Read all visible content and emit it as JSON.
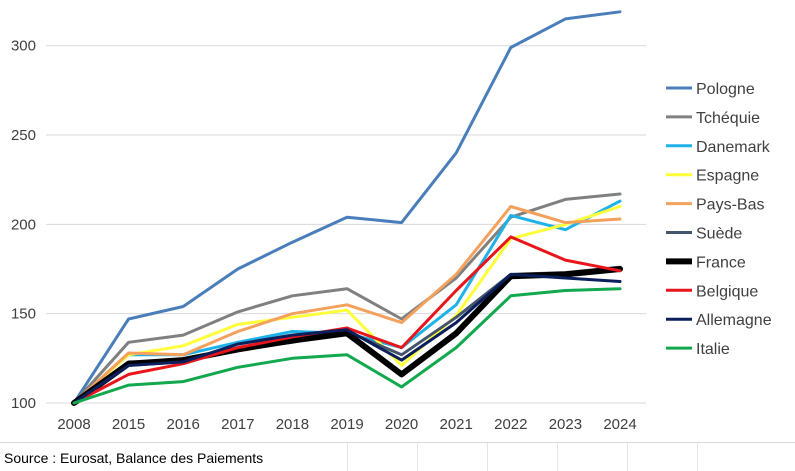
{
  "source_note": "Source : Eurosat, Balance des Paiements",
  "chart_data": {
    "type": "line",
    "title": "",
    "xlabel": "",
    "ylabel": "",
    "categories": [
      "2008",
      "2015",
      "2016",
      "2017",
      "2018",
      "2019",
      "2020",
      "2021",
      "2022",
      "2023",
      "2024"
    ],
    "ylim": [
      100,
      320
    ],
    "yticks": [
      100,
      150,
      200,
      250,
      300
    ],
    "grid": "horizontal",
    "legend_position": "right",
    "series": [
      {
        "name": "Pologne",
        "color": "#4a7ebb",
        "values": [
          100,
          147,
          154,
          175,
          190,
          204,
          201,
          240,
          299,
          315,
          319
        ]
      },
      {
        "name": "Tchéquie",
        "color": "#808080",
        "values": [
          100,
          134,
          138,
          151,
          160,
          164,
          147,
          170,
          204,
          214,
          217
        ]
      },
      {
        "name": "Danemark",
        "color": "#1fb2e8",
        "values": [
          100,
          127,
          127,
          134,
          140,
          139,
          131,
          155,
          205,
          197,
          213
        ]
      },
      {
        "name": "Espagne",
        "color": "#ffff3a",
        "values": [
          100,
          127,
          132,
          144,
          148,
          152,
          121,
          149,
          192,
          200,
          210
        ]
      },
      {
        "name": "Pays-Bas",
        "color": "#f4a15d",
        "values": [
          100,
          128,
          127,
          140,
          150,
          155,
          145,
          172,
          210,
          201,
          203
        ]
      },
      {
        "name": "Suède",
        "color": "#44546a",
        "values": [
          100,
          123,
          123,
          130,
          134,
          140,
          127,
          148,
          172,
          173,
          176
        ]
      },
      {
        "name": "France",
        "color": "#000000",
        "values": [
          100,
          122,
          124,
          130,
          135,
          139,
          116,
          139,
          171,
          172,
          175
        ]
      },
      {
        "name": "Belgique",
        "color": "#e8161b",
        "values": [
          100,
          116,
          122,
          131,
          137,
          142,
          131,
          163,
          193,
          180,
          174
        ]
      },
      {
        "name": "Allemagne",
        "color": "#0a1f5c",
        "values": [
          100,
          121,
          123,
          133,
          138,
          141,
          124,
          145,
          172,
          170,
          168
        ]
      },
      {
        "name": "Italie",
        "color": "#11a84e",
        "values": [
          100,
          110,
          112,
          120,
          125,
          127,
          109,
          131,
          160,
          163,
          164
        ]
      }
    ]
  }
}
